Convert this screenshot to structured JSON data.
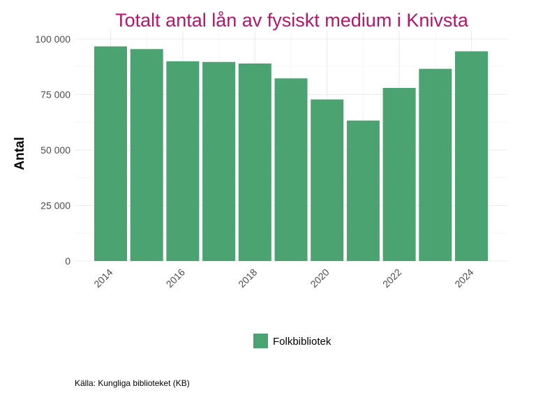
{
  "chart_data": {
    "type": "bar",
    "title": "Totalt antal lån av fysiskt medium i Knivsta",
    "xlabel": "",
    "ylabel": "Antal",
    "categories": [
      2014,
      2015,
      2016,
      2017,
      2018,
      2019,
      2020,
      2021,
      2022,
      2023,
      2024
    ],
    "x_tick_labels": [
      "2014",
      "2016",
      "2018",
      "2020",
      "2022",
      "2024"
    ],
    "y_tick_labels": [
      "0",
      "25 000",
      "50 000",
      "75 000",
      "100 000"
    ],
    "series": [
      {
        "name": "Folkbibliotek",
        "values": [
          96700,
          95500,
          90000,
          89700,
          89000,
          82300,
          72800,
          63300,
          78000,
          86600,
          94500
        ]
      }
    ],
    "ylim": [
      0,
      100000
    ],
    "grid": true,
    "legend_position": "bottom",
    "caption": "Källa: Kungliga biblioteket (KB)"
  },
  "colors": {
    "bar": "#4aa370",
    "title": "#b5156b",
    "grid": "#ebebeb"
  }
}
